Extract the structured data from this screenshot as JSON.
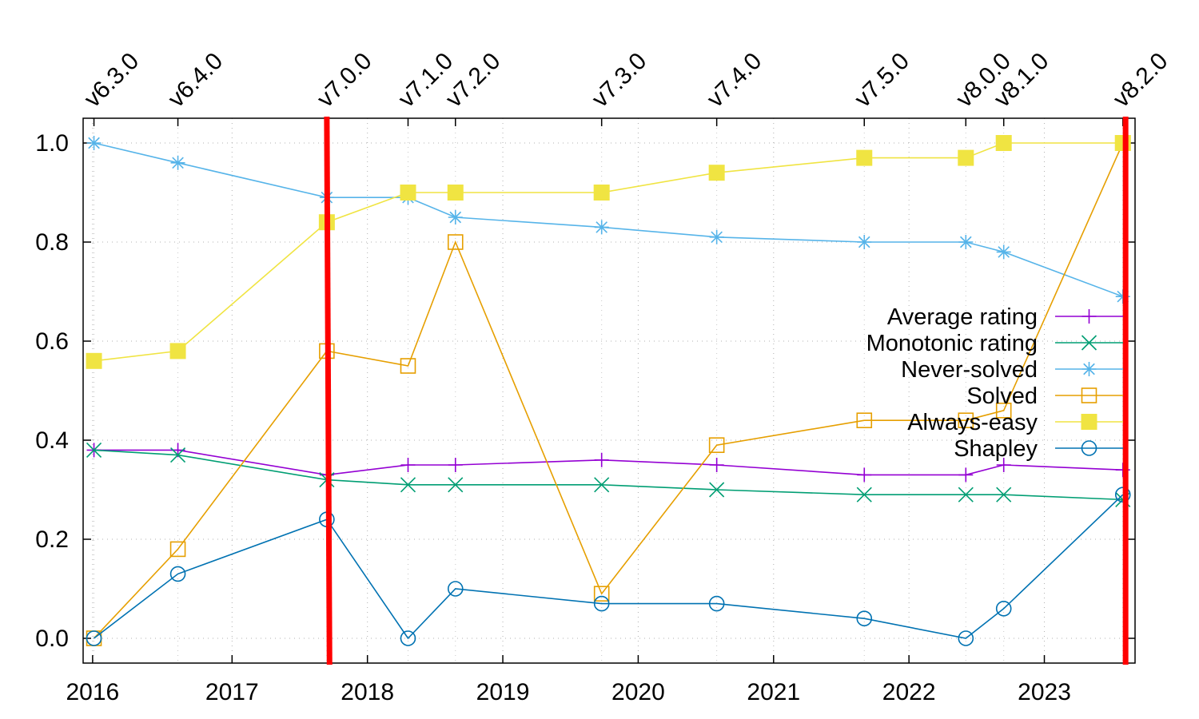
{
  "chart_data": {
    "type": "line",
    "title": "",
    "xlabel": "",
    "ylabel": "",
    "xlim": [
      2015.9,
      2023.67
    ],
    "ylim": [
      -0.05,
      1.05
    ],
    "grid": true,
    "legend_position": "right",
    "x_ticks": [
      {
        "value": 2015.97,
        "label": "2016"
      },
      {
        "value": 2017,
        "label": "2017"
      },
      {
        "value": 2018,
        "label": "2018"
      },
      {
        "value": 2019,
        "label": "2019"
      },
      {
        "value": 2020,
        "label": "2020"
      },
      {
        "value": 2021,
        "label": "2021"
      },
      {
        "value": 2022,
        "label": "2022"
      },
      {
        "value": 2023,
        "label": "2023"
      }
    ],
    "y_ticks": [
      {
        "value": 0.0,
        "label": "0.0"
      },
      {
        "value": 0.2,
        "label": "0.2"
      },
      {
        "value": 0.4,
        "label": "0.4"
      },
      {
        "value": 0.6,
        "label": "0.6"
      },
      {
        "value": 0.8,
        "label": "0.8"
      },
      {
        "value": 1.0,
        "label": "1.0"
      }
    ],
    "versions": [
      {
        "label": "v6.3.0",
        "x": 2015.98
      },
      {
        "label": "v6.4.0",
        "x": 2016.6
      },
      {
        "label": "v7.0.0",
        "x": 2017.7
      },
      {
        "label": "v7.1.0",
        "x": 2018.3
      },
      {
        "label": "v7.2.0",
        "x": 2018.65
      },
      {
        "label": "v7.3.0",
        "x": 2019.73
      },
      {
        "label": "v7.4.0",
        "x": 2020.58
      },
      {
        "label": "v7.5.0",
        "x": 2021.67
      },
      {
        "label": "v8.0.0",
        "x": 2022.42
      },
      {
        "label": "v8.1.0",
        "x": 2022.7
      },
      {
        "label": "v8.2.0",
        "x": 2023.58
      }
    ],
    "x": [
      2015.98,
      2016.6,
      2017.7,
      2018.3,
      2018.65,
      2019.73,
      2020.58,
      2021.67,
      2022.42,
      2022.7,
      2023.58
    ],
    "series": [
      {
        "name": "Average rating",
        "color": "#9400d3",
        "marker": "plus",
        "values": [
          0.38,
          0.38,
          0.33,
          0.35,
          0.35,
          0.36,
          0.35,
          0.33,
          0.33,
          0.35,
          0.34
        ]
      },
      {
        "name": "Monotonic rating",
        "color": "#009e73",
        "marker": "cross",
        "values": [
          0.38,
          0.37,
          0.32,
          0.31,
          0.31,
          0.31,
          0.3,
          0.29,
          0.29,
          0.29,
          0.28
        ]
      },
      {
        "name": "Never-solved",
        "color": "#56b4e9",
        "marker": "star",
        "values": [
          1.0,
          0.96,
          0.89,
          0.89,
          0.85,
          0.83,
          0.81,
          0.8,
          0.8,
          0.78,
          0.69
        ]
      },
      {
        "name": "Solved",
        "color": "#e69f00",
        "marker": "open-square",
        "values": [
          0.0,
          0.18,
          0.58,
          0.55,
          0.8,
          0.09,
          0.39,
          0.44,
          0.44,
          0.46,
          1.0
        ]
      },
      {
        "name": "Always-easy",
        "color": "#f0e442",
        "marker": "filled-square",
        "values": [
          0.56,
          0.58,
          0.84,
          0.9,
          0.9,
          0.9,
          0.94,
          0.97,
          0.97,
          1.0,
          1.0
        ]
      },
      {
        "name": "Shapley",
        "color": "#0072b2",
        "marker": "open-circle",
        "values": [
          0.0,
          0.13,
          0.24,
          0.0,
          0.1,
          0.07,
          0.07,
          0.04,
          0.0,
          0.06,
          0.29
        ]
      }
    ],
    "red_lines": [
      {
        "x_top": 2017.7,
        "x_bottom": 2017.72
      },
      {
        "x_top": 2023.6,
        "x_bottom": 2023.6
      }
    ]
  }
}
